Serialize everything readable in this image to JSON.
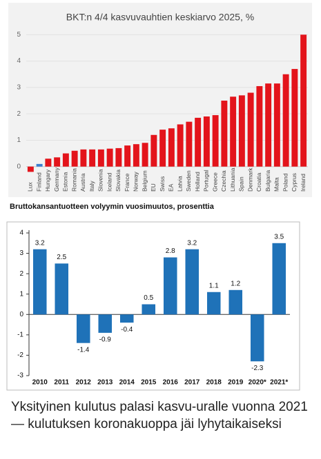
{
  "chart_data": [
    {
      "type": "bar",
      "title": "BKT:n 4/4 kasvuvauhtien keskiarvo 2025, %",
      "categories": [
        "Lux",
        "Finland",
        "Hungary",
        "Germany",
        "Estonia",
        "Romania",
        "Austria",
        "Italy",
        "Slovenia",
        "Iceland",
        "Slovakia",
        "France",
        "Norway",
        "Belgium",
        "EU",
        "Swiss",
        "EA",
        "Latvia",
        "Sweden",
        "Holland",
        "Portugal",
        "Greece",
        "Czechia",
        "Lithuania",
        "Spain",
        "Denmark",
        "Croatia",
        "Bulgaria",
        "Malta",
        "Poland",
        "Cyprus",
        "Ireland"
      ],
      "values": [
        -0.2,
        0.1,
        0.3,
        0.35,
        0.5,
        0.6,
        0.65,
        0.65,
        0.65,
        0.68,
        0.7,
        0.8,
        0.85,
        0.9,
        1.2,
        1.4,
        1.45,
        1.6,
        1.7,
        1.85,
        1.9,
        1.95,
        2.5,
        2.65,
        2.7,
        2.8,
        3.05,
        3.15,
        3.15,
        3.5,
        3.7,
        5.0
      ],
      "colors": [
        "#e3141b",
        "#3c7fcf",
        "#e3141b",
        "#e3141b",
        "#e3141b",
        "#e3141b",
        "#e3141b",
        "#e3141b",
        "#e3141b",
        "#e3141b",
        "#e3141b",
        "#e3141b",
        "#e3141b",
        "#e3141b",
        "#e3141b",
        "#e3141b",
        "#e3141b",
        "#e3141b",
        "#e3141b",
        "#e3141b",
        "#e3141b",
        "#e3141b",
        "#e3141b",
        "#e3141b",
        "#e3141b",
        "#e3141b",
        "#e3141b",
        "#e3141b",
        "#e3141b",
        "#e3141b",
        "#e3141b",
        "#e3141b"
      ],
      "ylim": [
        -1,
        5.4
      ],
      "yticks": [
        0,
        1,
        2,
        3,
        4,
        5
      ],
      "grid": true,
      "data_labels": false,
      "rotated_labels": true
    },
    {
      "type": "bar",
      "title": "Bruttokansantuotteen volyymin vuosimuutos, prosenttia",
      "categories": [
        "2010",
        "2011",
        "2012",
        "2013",
        "2014",
        "2015",
        "2016",
        "2017",
        "2018",
        "2019",
        "2020*",
        "2021*"
      ],
      "values": [
        3.2,
        2.5,
        -1.4,
        -0.9,
        -0.4,
        0.5,
        2.8,
        3.2,
        1.1,
        1.2,
        -2.3,
        3.5
      ],
      "color": "#1f72b8",
      "ylim": [
        -3,
        4
      ],
      "yticks": [
        -3,
        -2,
        -1,
        0,
        1,
        2,
        3,
        4
      ],
      "grid": false,
      "data_labels": true,
      "rotated_labels": false
    }
  ],
  "heading": "Yksityinen kulutus palasi kasvu-uralle vuonna 2021 — kulutuksen koronakuoppa jäi lyhytaikaiseksi"
}
